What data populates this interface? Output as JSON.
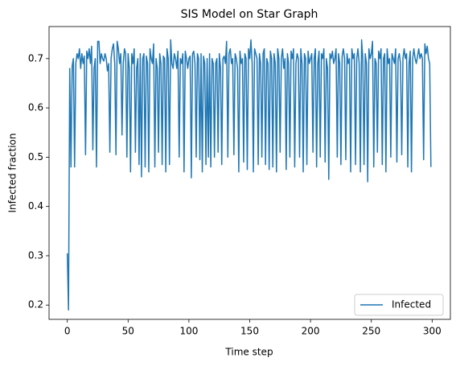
{
  "chart_data": {
    "type": "line",
    "title": "SIS Model on Star Graph",
    "xlabel": "Time step",
    "ylabel": "Infected fraction",
    "xlim": [
      -15,
      315
    ],
    "ylim": [
      0.171,
      0.765
    ],
    "xticks": [
      0,
      50,
      100,
      150,
      200,
      250,
      300
    ],
    "yticks": [
      0.2,
      0.3,
      0.4,
      0.5,
      0.6,
      0.7
    ],
    "legend": "lower right",
    "x": [
      0,
      1,
      2,
      3,
      4,
      5,
      6,
      7,
      8,
      9,
      10,
      11,
      12,
      13,
      14,
      15,
      16,
      17,
      18,
      19,
      20,
      21,
      22,
      23,
      24,
      25,
      26,
      27,
      28,
      29,
      30,
      31,
      32,
      33,
      34,
      35,
      36,
      37,
      38,
      39,
      40,
      41,
      42,
      43,
      44,
      45,
      46,
      47,
      48,
      49,
      50,
      51,
      52,
      53,
      54,
      55,
      56,
      57,
      58,
      59,
      60,
      61,
      62,
      63,
      64,
      65,
      66,
      67,
      68,
      69,
      70,
      71,
      72,
      73,
      74,
      75,
      76,
      77,
      78,
      79,
      80,
      81,
      82,
      83,
      84,
      85,
      86,
      87,
      88,
      89,
      90,
      91,
      92,
      93,
      94,
      95,
      96,
      97,
      98,
      99,
      100,
      101,
      102,
      103,
      104,
      105,
      106,
      107,
      108,
      109,
      110,
      111,
      112,
      113,
      114,
      115,
      116,
      117,
      118,
      119,
      120,
      121,
      122,
      123,
      124,
      125,
      126,
      127,
      128,
      129,
      130,
      131,
      132,
      133,
      134,
      135,
      136,
      137,
      138,
      139,
      140,
      141,
      142,
      143,
      144,
      145,
      146,
      147,
      148,
      149,
      150,
      151,
      152,
      153,
      154,
      155,
      156,
      157,
      158,
      159,
      160,
      161,
      162,
      163,
      164,
      165,
      166,
      167,
      168,
      169,
      170,
      171,
      172,
      173,
      174,
      175,
      176,
      177,
      178,
      179,
      180,
      181,
      182,
      183,
      184,
      185,
      186,
      187,
      188,
      189,
      190,
      191,
      192,
      193,
      194,
      195,
      196,
      197,
      198,
      199,
      200,
      201,
      202,
      203,
      204,
      205,
      206,
      207,
      208,
      209,
      210,
      211,
      212,
      213,
      214,
      215,
      216,
      217,
      218,
      219,
      220,
      221,
      222,
      223,
      224,
      225,
      226,
      227,
      228,
      229,
      230,
      231,
      232,
      233,
      234,
      235,
      236,
      237,
      238,
      239,
      240,
      241,
      242,
      243,
      244,
      245,
      246,
      247,
      248,
      249,
      250,
      251,
      252,
      253,
      254,
      255,
      256,
      257,
      258,
      259,
      260,
      261,
      262,
      263,
      264,
      265,
      266,
      267,
      268,
      269,
      270,
      271,
      272,
      273,
      274,
      275,
      276,
      277,
      278,
      279,
      280,
      281,
      282,
      283,
      284,
      285,
      286,
      287,
      288,
      289,
      290,
      291,
      292,
      293,
      294,
      295,
      296,
      297,
      298,
      299
    ],
    "series": [
      {
        "name": "Infected",
        "color": "#1f77b4",
        "values": [
          0.305,
          0.19,
          0.68,
          0.48,
          0.685,
          0.7,
          0.48,
          0.69,
          0.71,
          0.7,
          0.72,
          0.68,
          0.71,
          0.69,
          0.705,
          0.505,
          0.715,
          0.7,
          0.72,
          0.69,
          0.725,
          0.515,
          0.68,
          0.7,
          0.48,
          0.735,
          0.735,
          0.69,
          0.71,
          0.7,
          0.695,
          0.71,
          0.7,
          0.675,
          0.69,
          0.51,
          0.7,
          0.72,
          0.73,
          0.69,
          0.505,
          0.735,
          0.72,
          0.69,
          0.71,
          0.545,
          0.69,
          0.72,
          0.71,
          0.5,
          0.71,
          0.68,
          0.47,
          0.71,
          0.69,
          0.72,
          0.51,
          0.68,
          0.7,
          0.485,
          0.71,
          0.46,
          0.7,
          0.71,
          0.48,
          0.705,
          0.69,
          0.47,
          0.72,
          0.7,
          0.69,
          0.73,
          0.48,
          0.7,
          0.68,
          0.51,
          0.71,
          0.69,
          0.485,
          0.705,
          0.7,
          0.47,
          0.72,
          0.7,
          0.485,
          0.738,
          0.69,
          0.68,
          0.71,
          0.7,
          0.68,
          0.715,
          0.5,
          0.7,
          0.69,
          0.71,
          0.47,
          0.715,
          0.7,
          0.68,
          0.7,
          0.705,
          0.458,
          0.71,
          0.715,
          0.69,
          0.5,
          0.71,
          0.7,
          0.495,
          0.71,
          0.47,
          0.705,
          0.69,
          0.485,
          0.7,
          0.5,
          0.71,
          0.48,
          0.7,
          0.69,
          0.5,
          0.69,
          0.7,
          0.51,
          0.71,
          0.68,
          0.485,
          0.7,
          0.705,
          0.69,
          0.735,
          0.5,
          0.71,
          0.72,
          0.69,
          0.7,
          0.505,
          0.71,
          0.7,
          0.68,
          0.47,
          0.715,
          0.69,
          0.7,
          0.49,
          0.71,
          0.7,
          0.475,
          0.72,
          0.7,
          0.738,
          0.69,
          0.47,
          0.72,
          0.71,
          0.7,
          0.485,
          0.71,
          0.69,
          0.5,
          0.71,
          0.72,
          0.485,
          0.7,
          0.69,
          0.475,
          0.715,
          0.7,
          0.48,
          0.71,
          0.69,
          0.47,
          0.72,
          0.7,
          0.51,
          0.7,
          0.72,
          0.68,
          0.7,
          0.475,
          0.71,
          0.69,
          0.5,
          0.715,
          0.7,
          0.72,
          0.48,
          0.69,
          0.71,
          0.7,
          0.5,
          0.72,
          0.69,
          0.47,
          0.71,
          0.7,
          0.485,
          0.715,
          0.69,
          0.7,
          0.71,
          0.51,
          0.7,
          0.72,
          0.48,
          0.69,
          0.715,
          0.5,
          0.71,
          0.7,
          0.72,
          0.49,
          0.7,
          0.68,
          0.455,
          0.71,
          0.7,
          0.715,
          0.69,
          0.7,
          0.72,
          0.5,
          0.71,
          0.69,
          0.485,
          0.705,
          0.72,
          0.7,
          0.495,
          0.71,
          0.69,
          0.7,
          0.47,
          0.72,
          0.7,
          0.71,
          0.485,
          0.7,
          0.72,
          0.69,
          0.47,
          0.738,
          0.7,
          0.485,
          0.71,
          0.69,
          0.45,
          0.72,
          0.7,
          0.71,
          0.735,
          0.48,
          0.7,
          0.69,
          0.51,
          0.715,
          0.7,
          0.72,
          0.485,
          0.7,
          0.71,
          0.47,
          0.72,
          0.69,
          0.7,
          0.5,
          0.71,
          0.7,
          0.69,
          0.72,
          0.49,
          0.7,
          0.71,
          0.69,
          0.505,
          0.7,
          0.72,
          0.7,
          0.71,
          0.48,
          0.69,
          0.715,
          0.47,
          0.7,
          0.72,
          0.7,
          0.69,
          0.705,
          0.72,
          0.7,
          0.71,
          0.7,
          0.495,
          0.73,
          0.71,
          0.725,
          0.7,
          0.69,
          0.48
        ]
      }
    ]
  }
}
